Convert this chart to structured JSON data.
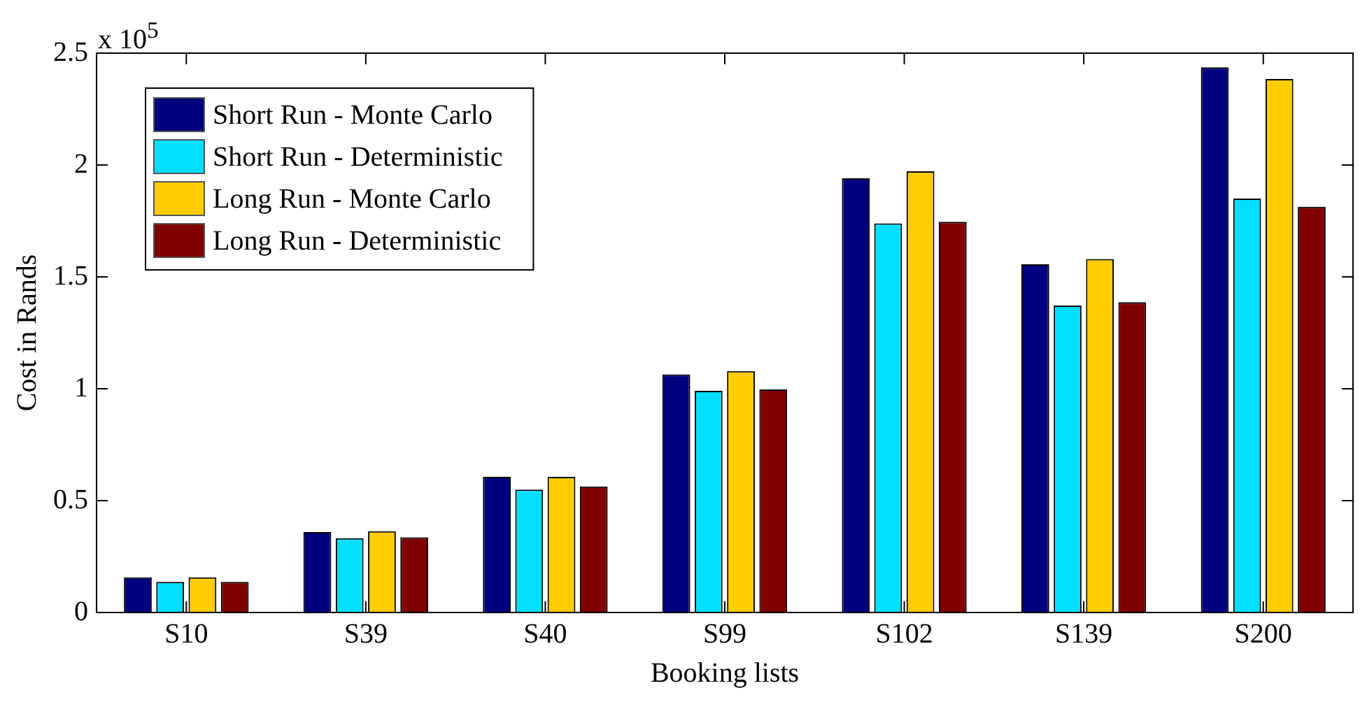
{
  "chart_data": {
    "type": "bar",
    "xlabel": "Booking lists",
    "ylabel": "Cost in Rands",
    "annotations": [
      "x 10$^{5}$"
    ],
    "categories": [
      "S10",
      "S39",
      "S40",
      "S99",
      "S102",
      "S139",
      "S200"
    ],
    "series": [
      {
        "name": "Short Run - Monte Carlo",
        "color": "#000080",
        "values": [
          0.157,
          0.359,
          0.606,
          1.064,
          1.941,
          1.556,
          2.437
        ]
      },
      {
        "name": "Short Run - Deterministic",
        "color": "#00dfff",
        "values": [
          0.137,
          0.332,
          0.549,
          0.991,
          1.739,
          1.372,
          1.85
        ]
      },
      {
        "name": "Long Run - Monte Carlo",
        "color": "#ffcc00",
        "values": [
          0.157,
          0.363,
          0.606,
          1.079,
          1.972,
          1.58,
          2.384
        ]
      },
      {
        "name": "Long Run - Deterministic",
        "color": "#800000",
        "values": [
          0.137,
          0.336,
          0.563,
          0.997,
          1.746,
          1.387,
          1.813
        ]
      }
    ],
    "ylim": [
      0,
      2.5
    ],
    "yticks": [
      0,
      0.5,
      1,
      1.5,
      2,
      2.5
    ],
    "grid": false,
    "legend": "top left"
  }
}
